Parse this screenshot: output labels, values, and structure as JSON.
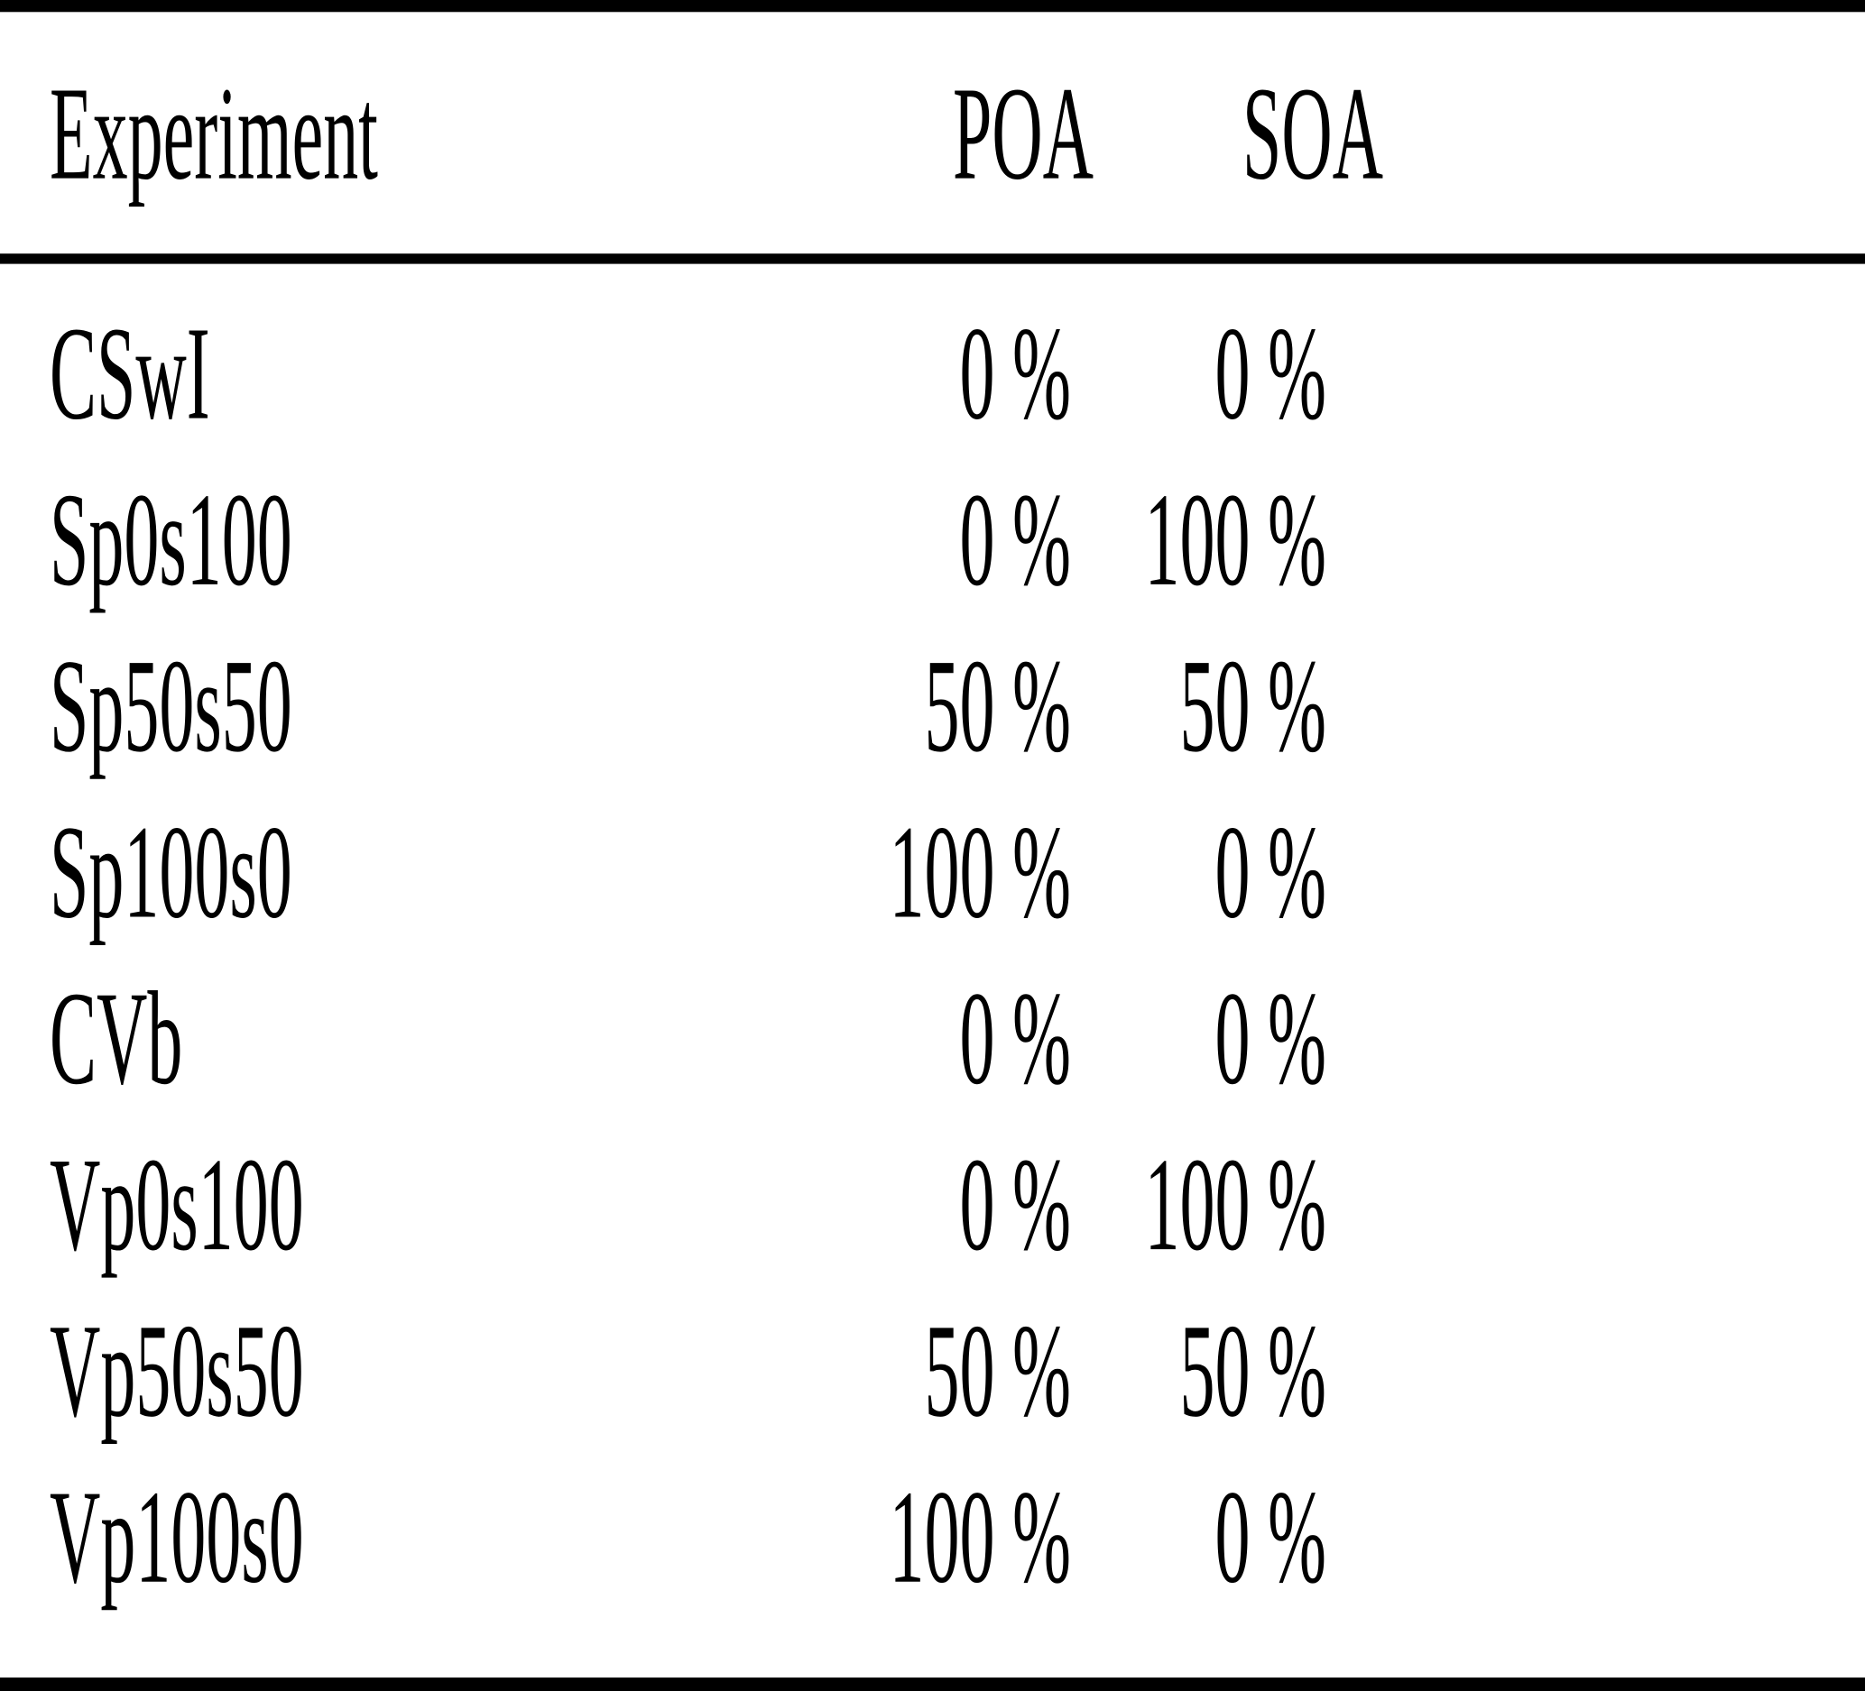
{
  "page": {
    "background_color": "#ffffff",
    "text_color": "#000000"
  },
  "table": {
    "columns": {
      "experiment": "Experiment",
      "poa": "POA",
      "soa": "SOA"
    },
    "rows": [
      {
        "experiment": "CSwI",
        "poa": "0 %",
        "soa": "0 %"
      },
      {
        "experiment": "Sp0s100",
        "poa": "0 %",
        "soa": "100 %"
      },
      {
        "experiment": "Sp50s50",
        "poa": "50 %",
        "soa": "50 %"
      },
      {
        "experiment": "Sp100s0",
        "poa": "100 %",
        "soa": "0 %"
      },
      {
        "experiment": "CVb",
        "poa": "0 %",
        "soa": "0 %"
      },
      {
        "experiment": "Vp0s100",
        "poa": "0 %",
        "soa": "100 %"
      },
      {
        "experiment": "Vp50s50",
        "poa": "50 %",
        "soa": "50 %"
      },
      {
        "experiment": "Vp100s0",
        "poa": "100 %",
        "soa": "0 %"
      }
    ]
  }
}
